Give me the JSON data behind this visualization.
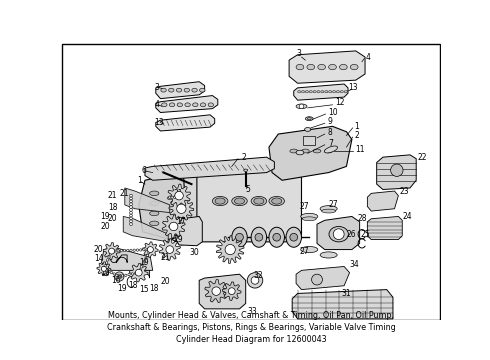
{
  "background_color": "#ffffff",
  "border_color": "#000000",
  "text_color": "#000000",
  "subtitle": "Mounts, Cylinder Head & Valves, Camshaft & Timing, Oil Pan, Oil Pump,\nCrankshaft & Bearings, Pistons, Rings & Bearings, Variable Valve Timing\nCylinder Head Diagram for 12600043",
  "subtitle_fontsize": 5.8,
  "label_fontsize": 5.5,
  "line_color": "#000000",
  "part_fill": "#e8e8e8",
  "part_edge": "#111111"
}
